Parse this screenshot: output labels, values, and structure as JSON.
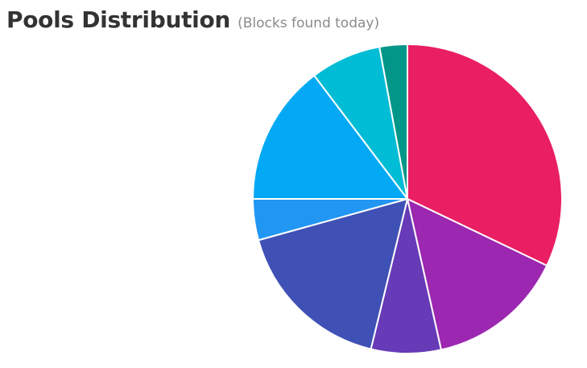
{
  "header": {
    "title": "Pools Distribution",
    "subtitle": "(Blocks found today)"
  },
  "chart_data": {
    "type": "pie",
    "title": "Pools Distribution",
    "subtitle": "(Blocks found today)",
    "legend": "none",
    "slices": [
      {
        "value": 32.1,
        "color": "#e91e63"
      },
      {
        "value": 14.4,
        "color": "#9c27b0"
      },
      {
        "value": 7.3,
        "color": "#673ab7"
      },
      {
        "value": 16.9,
        "color": "#3f51b5"
      },
      {
        "value": 4.3,
        "color": "#2196f3"
      },
      {
        "value": 14.7,
        "color": "#03a9f4"
      },
      {
        "value": 7.4,
        "color": "#00bcd4"
      },
      {
        "value": 2.9,
        "color": "#009688"
      }
    ]
  }
}
